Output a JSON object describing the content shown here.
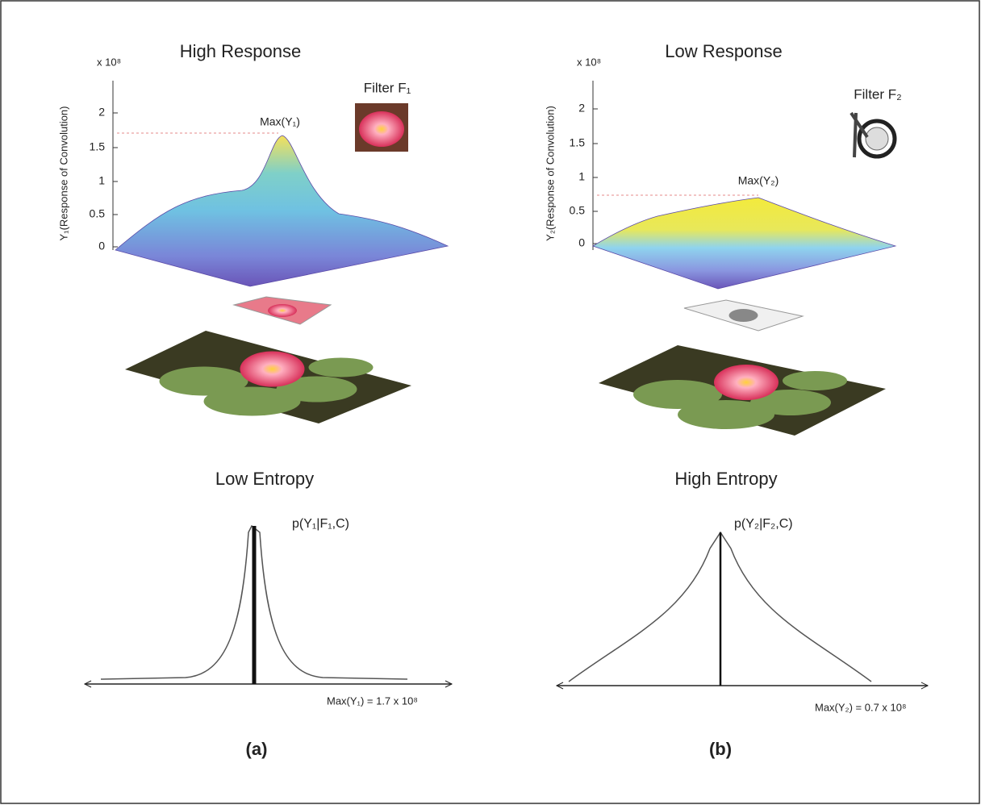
{
  "panels": [
    {
      "title": "High Response",
      "scale": "x 10⁸",
      "y_axis_label": "Y₁(Response of Convolution)",
      "y_ticks": [
        "2",
        "1.5",
        "1",
        "0.5",
        "0"
      ],
      "filter_label": "Filter F₁",
      "max_label": "Max(Y₁)",
      "entropy_title": "Low Entropy",
      "distribution_label": "p(Y₁|F₁,C)",
      "max_value_label": "Max(Y₁) = 1.7 x 10⁸",
      "caption": "(a)"
    },
    {
      "title": "Low Response",
      "scale": "x 10⁸",
      "y_axis_label": "Y₂(Response of Convolution)",
      "y_ticks": [
        "2",
        "1.5",
        "1",
        "0.5",
        "0"
      ],
      "filter_label": "Filter F₂",
      "max_label": "Max(Y₂)",
      "entropy_title": "High Entropy",
      "distribution_label": "p(Y₂|F₂,C)",
      "max_value_label": "Max(Y₂) = 0.7 x 10⁸",
      "caption": "(b)"
    }
  ]
}
